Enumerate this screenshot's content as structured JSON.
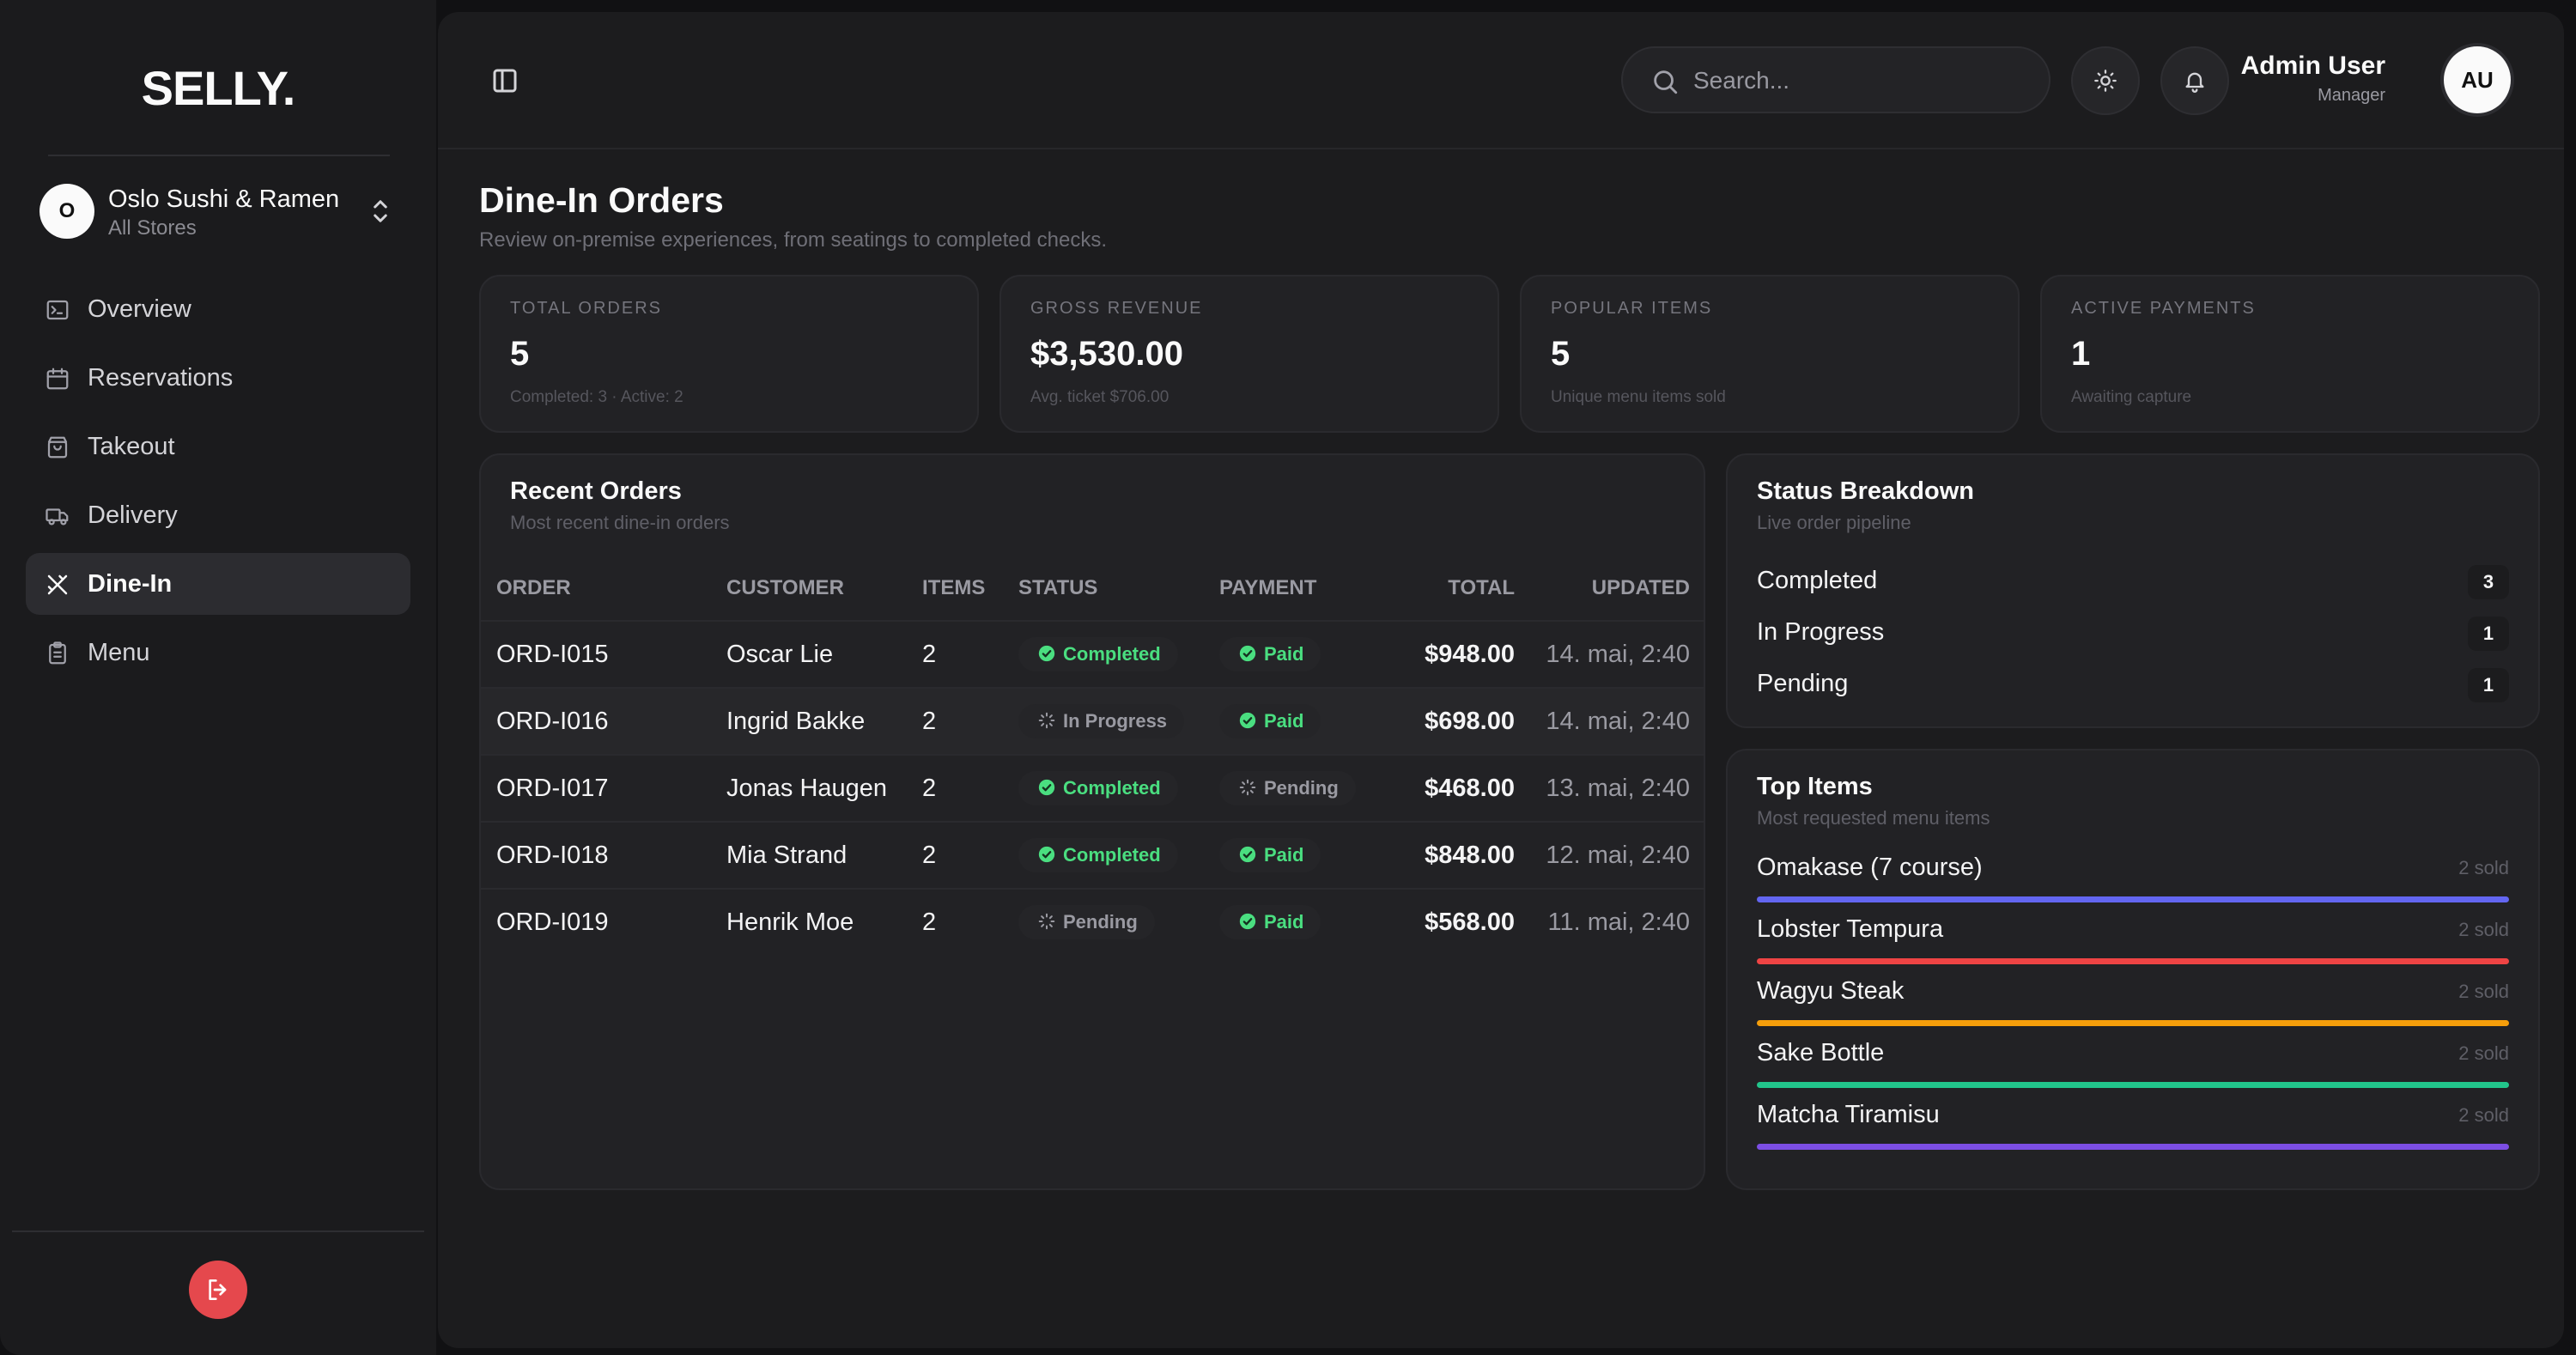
{
  "brand": {
    "logo": "SELLY."
  },
  "store": {
    "avatar": "O",
    "name": "Oslo Sushi & Ramen",
    "sub": "All Stores"
  },
  "nav": [
    {
      "label": "Overview",
      "icon": "terminal-icon"
    },
    {
      "label": "Reservations",
      "icon": "calendar-icon"
    },
    {
      "label": "Takeout",
      "icon": "shopping-bag-icon"
    },
    {
      "label": "Delivery",
      "icon": "truck-icon"
    },
    {
      "label": "Dine-In",
      "icon": "utensils-icon",
      "active": true
    },
    {
      "label": "Menu",
      "icon": "clipboard-icon"
    }
  ],
  "header": {
    "search_placeholder": "Search...",
    "user_name": "Admin User",
    "user_role": "Manager",
    "user_initials": "AU"
  },
  "page": {
    "title": "Dine-In Orders",
    "subtitle": "Review on-premise experiences, from seatings to completed checks."
  },
  "stats": [
    {
      "label": "TOTAL ORDERS",
      "value": "5",
      "note": "Completed: 3 · Active: 2"
    },
    {
      "label": "GROSS REVENUE",
      "value": "$3,530.00",
      "note": "Avg. ticket $706.00"
    },
    {
      "label": "POPULAR ITEMS",
      "value": "5",
      "note": "Unique menu items sold"
    },
    {
      "label": "ACTIVE PAYMENTS",
      "value": "1",
      "note": "Awaiting capture"
    }
  ],
  "recent_orders": {
    "title": "Recent Orders",
    "subtitle": "Most recent dine-in orders",
    "columns": {
      "order": "ORDER",
      "customer": "CUSTOMER",
      "items": "ITEMS",
      "status": "STATUS",
      "payment": "PAYMENT",
      "total": "TOTAL",
      "updated": "UPDATED"
    },
    "rows": [
      {
        "order": "ORD-I015",
        "customer": "Oscar Lie",
        "items": "2",
        "status": "Completed",
        "payment": "Paid",
        "total": "$948.00",
        "updated": "14. mai, 2:40"
      },
      {
        "order": "ORD-I016",
        "customer": "Ingrid Bakke",
        "items": "2",
        "status": "In Progress",
        "payment": "Paid",
        "total": "$698.00",
        "updated": "14. mai, 2:40"
      },
      {
        "order": "ORD-I017",
        "customer": "Jonas Haugen",
        "items": "2",
        "status": "Completed",
        "payment": "Pending",
        "total": "$468.00",
        "updated": "13. mai, 2:40"
      },
      {
        "order": "ORD-I018",
        "customer": "Mia Strand",
        "items": "2",
        "status": "Completed",
        "payment": "Paid",
        "total": "$848.00",
        "updated": "12. mai, 2:40"
      },
      {
        "order": "ORD-I019",
        "customer": "Henrik Moe",
        "items": "2",
        "status": "Pending",
        "payment": "Paid",
        "total": "$568.00",
        "updated": "11. mai, 2:40"
      }
    ]
  },
  "status_breakdown": {
    "title": "Status Breakdown",
    "subtitle": "Live order pipeline",
    "rows": [
      {
        "label": "Completed",
        "count": "3"
      },
      {
        "label": "In Progress",
        "count": "1"
      },
      {
        "label": "Pending",
        "count": "1"
      }
    ]
  },
  "top_items": {
    "title": "Top Items",
    "subtitle": "Most requested menu items",
    "items": [
      {
        "name": "Omakase (7 course)",
        "sold": "2 sold",
        "color": "#6366f1"
      },
      {
        "name": "Lobster Tempura",
        "sold": "2 sold",
        "color": "#ef4444"
      },
      {
        "name": "Wagyu Steak",
        "sold": "2 sold",
        "color": "#f59e0b"
      },
      {
        "name": "Sake Bottle",
        "sold": "2 sold",
        "color": "#22c58b"
      },
      {
        "name": "Matcha Tiramisu",
        "sold": "2 sold",
        "color": "#7c4ee4"
      }
    ]
  }
}
